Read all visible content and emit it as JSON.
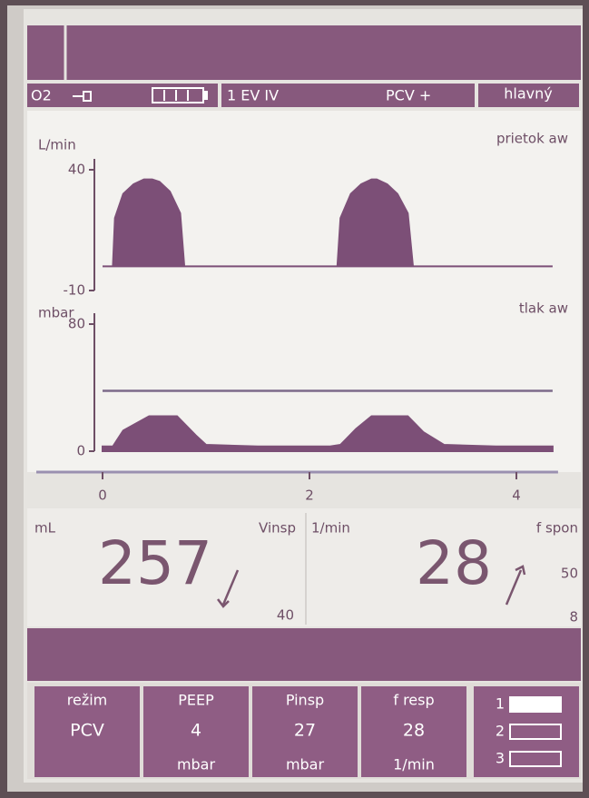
{
  "status_bar": {
    "o2": "O2",
    "event": "1 EV IV",
    "mode": "PCV +",
    "screen": "hlavný"
  },
  "waveforms": {
    "xlim": [
      0,
      4.35
    ],
    "time_ticks": [
      0,
      2,
      4
    ],
    "flow": {
      "unit": "L/min",
      "name": "prietok aw",
      "ylim": [
        -10,
        40
      ],
      "yticks": [
        40,
        -10
      ],
      "x": [
        0,
        0.1,
        0.12,
        0.2,
        0.3,
        0.4,
        0.48,
        0.55,
        0.65,
        0.75,
        0.79,
        0.8,
        2.26,
        2.27,
        2.3,
        2.4,
        2.5,
        2.6,
        2.65,
        2.75,
        2.85,
        2.95,
        3.0,
        3.01,
        4.35
      ],
      "values": [
        0,
        0,
        20,
        30,
        34,
        36,
        36,
        35,
        31,
        22,
        0,
        0,
        0,
        0,
        20,
        30,
        34,
        36,
        36,
        34,
        30,
        22,
        0,
        0,
        0
      ]
    },
    "pressure": {
      "unit": "mbar",
      "name": "tlak aw",
      "ylim": [
        0,
        80
      ],
      "yticks": [
        80,
        0
      ],
      "limit": 38,
      "x": [
        0,
        0.1,
        0.2,
        0.45,
        0.72,
        0.9,
        1.0,
        1.5,
        2.2,
        2.3,
        2.45,
        2.6,
        2.95,
        3.1,
        3.3,
        3.8,
        4.35
      ],
      "values": [
        3,
        3,
        13,
        22,
        22,
        10,
        4,
        3,
        3,
        4,
        14,
        22,
        22,
        12,
        4,
        3,
        3
      ]
    }
  },
  "readouts": [
    {
      "unit": "mL",
      "label": "Vinsp",
      "value": 257,
      "limits": [
        40
      ]
    },
    {
      "unit": "1/min",
      "label": "f spon",
      "value": 28,
      "limits": [
        50,
        8
      ]
    }
  ],
  "settings": [
    {
      "label": "režim",
      "value": "PCV"
    },
    {
      "label": "PEEP",
      "value": 4,
      "unit": "mbar"
    },
    {
      "label": "Pinsp",
      "value": 27,
      "unit": "mbar"
    },
    {
      "label": "f resp",
      "value": 28,
      "unit": "1/min"
    }
  ],
  "screens": [
    1,
    2,
    3
  ]
}
